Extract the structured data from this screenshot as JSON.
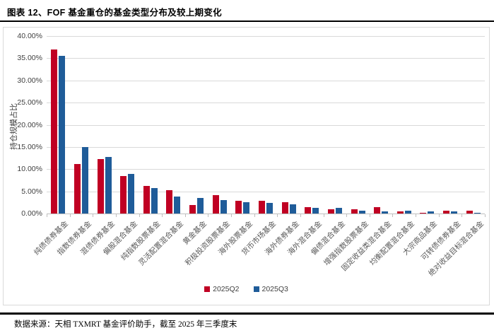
{
  "page": {
    "title": "图表 12、FOF 基金重仓的基金类型分布及较上期变化",
    "source_note": "数据来源：天相 TXMRT 基金评价助手，截至 2025 年三季度末"
  },
  "colors": {
    "series_q2": "#c00023",
    "series_q3": "#1f5c99",
    "gridline": "#d9d9d9",
    "axis_text": "#404040",
    "category_text": "#595959",
    "chart_border": "#d9d9d9"
  },
  "chart_data": {
    "type": "bar",
    "title": "",
    "xlabel": "",
    "ylabel": "持仓规模占比",
    "ylim": [
      0,
      40
    ],
    "ytick_step": 5,
    "ytick_suffix": "%",
    "grid": true,
    "legend_position": "bottom-center",
    "categories": [
      "纯债债券基金",
      "指数债券基金",
      "混债债券基金",
      "偏股混合基金",
      "纯指数股票基金",
      "灵活配置混合基金",
      "黄金基金",
      "积极投资股票基金",
      "海外股票基金",
      "货币市场基金",
      "海外债券基金",
      "海外混合基金",
      "偏债混合基金",
      "增强指数股票基金",
      "固定收益类混合基金",
      "均衡配置混合基金",
      "大宗商品基金",
      "可转债债券基金",
      "绝对收益目标混合基金"
    ],
    "series": [
      {
        "name": "2025Q2",
        "color": "#c00023",
        "values": [
          36.9,
          11.1,
          12.3,
          8.5,
          6.2,
          5.2,
          1.9,
          4.1,
          2.9,
          2.9,
          2.5,
          1.4,
          1.0,
          1.0,
          1.5,
          0.5,
          0.1,
          0.6,
          0.6
        ]
      },
      {
        "name": "2025Q3",
        "color": "#1f5c99",
        "values": [
          35.6,
          15.0,
          12.8,
          8.9,
          5.8,
          3.9,
          3.5,
          3.1,
          2.6,
          2.4,
          2.1,
          1.2,
          1.3,
          0.7,
          0.5,
          0.6,
          0.5,
          0.5,
          0.1
        ]
      }
    ]
  }
}
